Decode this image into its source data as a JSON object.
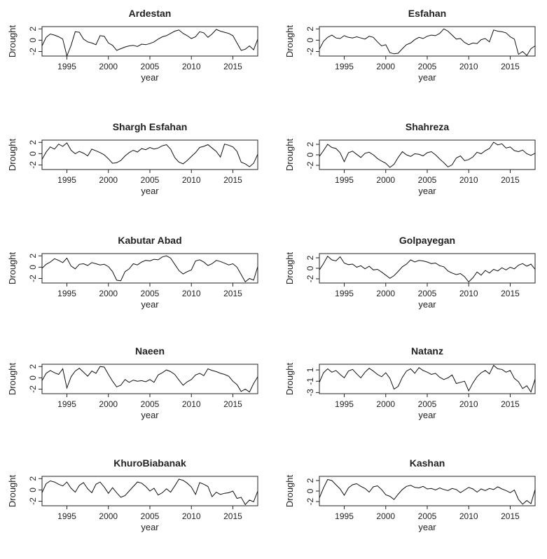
{
  "chart_data": [
    {
      "type": "line",
      "title": "Ardestan",
      "xlabel": "year",
      "ylabel": "Drought",
      "xlim": [
        1992,
        2018
      ],
      "ylim": [
        -2.8,
        2.4
      ],
      "xticks": [
        1995,
        2000,
        2005,
        2010,
        2015
      ],
      "yticks": [
        2,
        0,
        -2
      ],
      "x": [
        1992,
        1992.5,
        1993,
        1993.5,
        1994,
        1994.5,
        1995,
        1995.5,
        1996,
        1996.5,
        1997,
        1997.5,
        1998,
        1998.5,
        1999,
        1999.5,
        2000,
        2000.5,
        2001,
        2001.5,
        2002,
        2002.5,
        2003,
        2003.5,
        2004,
        2004.5,
        2005,
        2005.5,
        2006,
        2006.5,
        2007,
        2007.5,
        2008,
        2008.5,
        2009,
        2009.5,
        2010,
        2010.5,
        2011,
        2011.5,
        2012,
        2012.5,
        2013,
        2013.5,
        2014,
        2014.5,
        2015,
        2015.5,
        2016,
        2016.5,
        2017,
        2017.5,
        2018
      ],
      "y": [
        -1,
        0.5,
        1.1,
        0.9,
        0.6,
        0.2,
        -2.8,
        -0.9,
        1.5,
        1.4,
        0.2,
        -0.3,
        -0.5,
        -0.8,
        0.8,
        0.7,
        -0.5,
        -0.9,
        -1.8,
        -1.5,
        -1.2,
        -1.0,
        -0.9,
        -1.1,
        -0.7,
        -0.8,
        -0.6,
        -0.3,
        0.2,
        0.6,
        0.8,
        1.2,
        1.6,
        1.8,
        1.2,
        0.8,
        0.3,
        0.6,
        1.5,
        1.3,
        0.5,
        1.1,
        1.9,
        1.6,
        1.4,
        1.2,
        0.8,
        -0.5,
        -1.8,
        -1.6,
        -1.0,
        -1.7,
        0.2
      ]
    },
    {
      "type": "line",
      "title": "Esfahan",
      "xlabel": "year",
      "ylabel": "Drought",
      "xlim": [
        1992,
        2018
      ],
      "ylim": [
        -2.8,
        2.4
      ],
      "xticks": [
        1995,
        2000,
        2005,
        2010,
        2015
      ],
      "yticks": [
        2,
        0,
        -2
      ],
      "x": [
        1992,
        1992.5,
        1993,
        1993.5,
        1994,
        1994.5,
        1995,
        1995.5,
        1996,
        1996.5,
        1997,
        1997.5,
        1998,
        1998.5,
        1999,
        1999.5,
        2000,
        2000.5,
        2001,
        2001.5,
        2002,
        2002.5,
        2003,
        2003.5,
        2004,
        2004.5,
        2005,
        2005.5,
        2006,
        2006.5,
        2007,
        2007.5,
        2008,
        2008.5,
        2009,
        2009.5,
        2010,
        2010.5,
        2011,
        2011.5,
        2012,
        2012.5,
        2013,
        2013.5,
        2014,
        2014.5,
        2015,
        2015.5,
        2016,
        2016.5,
        2017,
        2017.5,
        2018
      ],
      "y": [
        -1.6,
        -0.2,
        0.5,
        0.9,
        0.4,
        0.3,
        0.8,
        0.5,
        0.4,
        0.6,
        0.4,
        0.2,
        0.7,
        0.5,
        -0.3,
        -1.0,
        -0.8,
        -2.2,
        -2.4,
        -2.3,
        -1.5,
        -0.8,
        -0.5,
        0.1,
        0.5,
        0.3,
        0.7,
        0.9,
        0.8,
        1.2,
        2.0,
        1.6,
        0.9,
        0.2,
        0.3,
        -0.4,
        -0.8,
        -0.5,
        -0.6,
        0.1,
        0.3,
        -0.3,
        1.8,
        1.6,
        1.5,
        1.3,
        0.6,
        0.2,
        -2.5,
        -2.0,
        -2.7,
        -1.5,
        -1.0
      ]
    },
    {
      "type": "line",
      "title": "Shargh Esfahan",
      "xlabel": "year",
      "ylabel": "Drought",
      "xlim": [
        1992,
        2018
      ],
      "ylim": [
        -2.8,
        2.4
      ],
      "xticks": [
        1995,
        2000,
        2005,
        2010,
        2015
      ],
      "yticks": [
        2,
        0,
        -2
      ],
      "x": [
        1992,
        1992.5,
        1993,
        1993.5,
        1994,
        1994.5,
        1995,
        1995.5,
        1996,
        1996.5,
        1997,
        1997.5,
        1998,
        1998.5,
        1999,
        1999.5,
        2000,
        2000.5,
        2001,
        2001.5,
        2002,
        2002.5,
        2003,
        2003.5,
        2004,
        2004.5,
        2005,
        2005.5,
        2006,
        2006.5,
        2007,
        2007.5,
        2008,
        2008.5,
        2009,
        2009.5,
        2010,
        2010.5,
        2011,
        2011.5,
        2012,
        2012.5,
        2013,
        2013.5,
        2014,
        2014.5,
        2015,
        2015.5,
        2016,
        2016.5,
        2017,
        2017.5,
        2018
      ],
      "y": [
        -1.0,
        0.3,
        1.2,
        0.8,
        1.7,
        1.3,
        1.9,
        0.6,
        0.0,
        0.4,
        0.1,
        -0.4,
        0.8,
        0.5,
        0.2,
        -0.2,
        -0.9,
        -1.7,
        -1.6,
        -1.2,
        -0.4,
        0.2,
        0.6,
        0.3,
        0.9,
        0.7,
        1.1,
        0.8,
        1.0,
        1.4,
        1.6,
        0.8,
        -0.7,
        -1.5,
        -1.8,
        -1.2,
        -0.5,
        0.2,
        1.1,
        1.3,
        1.6,
        1.0,
        0.4,
        -0.6,
        1.7,
        1.5,
        1.2,
        0.4,
        -1.5,
        -1.8,
        -2.3,
        -1.7,
        -0.1
      ]
    },
    {
      "type": "line",
      "title": "Shahreza",
      "xlabel": "year",
      "ylabel": "Drought",
      "xlim": [
        1992,
        2018
      ],
      "ylim": [
        -2.8,
        2.8
      ],
      "xticks": [
        1995,
        2000,
        2005,
        2010,
        2015
      ],
      "yticks": [
        2,
        0,
        -2
      ],
      "x": [
        1992,
        1992.5,
        1993,
        1993.5,
        1994,
        1994.5,
        1995,
        1995.5,
        1996,
        1996.5,
        1997,
        1997.5,
        1998,
        1998.5,
        1999,
        1999.5,
        2000,
        2000.5,
        2001,
        2001.5,
        2002,
        2002.5,
        2003,
        2003.5,
        2004,
        2004.5,
        2005,
        2005.5,
        2006,
        2006.5,
        2007,
        2007.5,
        2008,
        2008.5,
        2009,
        2009.5,
        2010,
        2010.5,
        2011,
        2011.5,
        2012,
        2012.5,
        2013,
        2013.5,
        2014,
        2014.5,
        2015,
        2015.5,
        2016,
        2016.5,
        2017,
        2017.5,
        2018
      ],
      "y": [
        -0.3,
        0.8,
        2.0,
        1.4,
        1.2,
        0.4,
        -1.3,
        0.4,
        0.7,
        0.1,
        -0.5,
        0.3,
        0.5,
        0.0,
        -0.7,
        -1.2,
        -1.6,
        -2.4,
        -1.8,
        -0.5,
        0.6,
        0.0,
        -0.3,
        0.2,
        0.1,
        -0.2,
        0.4,
        0.6,
        0.0,
        -0.8,
        -1.5,
        -2.3,
        -1.9,
        -0.6,
        -0.2,
        -1.1,
        -0.9,
        -0.4,
        0.5,
        0.2,
        0.8,
        1.2,
        2.4,
        1.9,
        2.1,
        1.3,
        1.5,
        0.8,
        0.6,
        0.9,
        0.2,
        -0.1,
        0.3
      ]
    },
    {
      "type": "line",
      "title": "Kabutar Abad",
      "xlabel": "year",
      "ylabel": "Drought",
      "xlim": [
        1992,
        2018
      ],
      "ylim": [
        -2.8,
        2.4
      ],
      "xticks": [
        1995,
        2000,
        2005,
        2010,
        2015
      ],
      "yticks": [
        2,
        0,
        -2
      ],
      "x": [
        1992,
        1992.5,
        1993,
        1993.5,
        1994,
        1994.5,
        1995,
        1995.5,
        1996,
        1996.5,
        1997,
        1997.5,
        1998,
        1998.5,
        1999,
        1999.5,
        2000,
        2000.5,
        2001,
        2001.5,
        2002,
        2002.5,
        2003,
        2003.5,
        2004,
        2004.5,
        2005,
        2005.5,
        2006,
        2006.5,
        2007,
        2007.5,
        2008,
        2008.5,
        2009,
        2009.5,
        2010,
        2010.5,
        2011,
        2011.5,
        2012,
        2012.5,
        2013,
        2013.5,
        2014,
        2014.5,
        2015,
        2015.5,
        2016,
        2016.5,
        2017,
        2017.5,
        2018
      ],
      "y": [
        -0.2,
        0.5,
        0.9,
        1.5,
        1.2,
        0.8,
        1.6,
        0.2,
        -0.3,
        0.5,
        0.6,
        0.3,
        0.8,
        0.6,
        0.4,
        0.5,
        0.1,
        -0.8,
        -2.3,
        -2.4,
        -0.8,
        -0.3,
        0.6,
        0.4,
        0.9,
        1.2,
        1.1,
        1.4,
        1.3,
        1.8,
        2.0,
        1.6,
        0.5,
        -0.6,
        -1.2,
        -0.8,
        -0.5,
        1.1,
        1.3,
        0.9,
        0.3,
        0.6,
        1.2,
        1.0,
        0.7,
        0.4,
        0.6,
        0.0,
        -1.3,
        -2.6,
        -2.0,
        -2.3,
        0.1
      ]
    },
    {
      "type": "line",
      "title": "Golpayegan",
      "xlabel": "year",
      "ylabel": "Drought",
      "xlim": [
        1992,
        2018
      ],
      "ylim": [
        -2.8,
        2.8
      ],
      "xticks": [
        1995,
        2000,
        2005,
        2010,
        2015
      ],
      "yticks": [
        2,
        0,
        -2
      ],
      "x": [
        1992,
        1992.5,
        1993,
        1993.5,
        1994,
        1994.5,
        1995,
        1995.5,
        1996,
        1996.5,
        1997,
        1997.5,
        1998,
        1998.5,
        1999,
        1999.5,
        2000,
        2000.5,
        2001,
        2001.5,
        2002,
        2002.5,
        2003,
        2003.5,
        2004,
        2004.5,
        2005,
        2005.5,
        2006,
        2006.5,
        2007,
        2007.5,
        2008,
        2008.5,
        2009,
        2009.5,
        2010,
        2010.5,
        2011,
        2011.5,
        2012,
        2012.5,
        2013,
        2013.5,
        2014,
        2014.5,
        2015,
        2015.5,
        2016,
        2016.5,
        2017,
        2017.5,
        2018
      ],
      "y": [
        -0.3,
        0.9,
        2.3,
        1.6,
        1.4,
        2.2,
        1.0,
        0.7,
        0.8,
        0.2,
        0.5,
        -0.1,
        0.4,
        -0.3,
        -0.2,
        -0.7,
        -1.3,
        -1.9,
        -1.4,
        -0.6,
        0.3,
        0.8,
        1.6,
        1.2,
        1.5,
        1.4,
        1.2,
        0.9,
        1.0,
        0.5,
        0.3,
        -0.5,
        -0.9,
        -1.2,
        -1.0,
        -1.6,
        -2.6,
        -1.8,
        -0.7,
        -1.3,
        -0.4,
        -0.9,
        -0.2,
        -0.5,
        0.1,
        -0.3,
        0.2,
        -0.1,
        0.6,
        0.9,
        0.4,
        0.8,
        -0.2
      ]
    },
    {
      "type": "line",
      "title": "Naeen",
      "xlabel": "year",
      "ylabel": "Drought",
      "xlim": [
        1992,
        2018
      ],
      "ylim": [
        -2.8,
        2.4
      ],
      "xticks": [
        1995,
        2000,
        2005,
        2010,
        2015
      ],
      "yticks": [
        2,
        0,
        -2
      ],
      "x": [
        1992,
        1992.5,
        1993,
        1993.5,
        1994,
        1994.5,
        1995,
        1995.5,
        1996,
        1996.5,
        1997,
        1997.5,
        1998,
        1998.5,
        1999,
        1999.5,
        2000,
        2000.5,
        2001,
        2001.5,
        2002,
        2002.5,
        2003,
        2003.5,
        2004,
        2004.5,
        2005,
        2005.5,
        2006,
        2006.5,
        2007,
        2007.5,
        2008,
        2008.5,
        2009,
        2009.5,
        2010,
        2010.5,
        2011,
        2011.5,
        2012,
        2012.5,
        2013,
        2013.5,
        2014,
        2014.5,
        2015,
        2015.5,
        2016,
        2016.5,
        2017,
        2017.5,
        2018
      ],
      "y": [
        -0.5,
        0.8,
        1.3,
        0.9,
        0.6,
        1.6,
        -1.8,
        0.2,
        1.2,
        1.7,
        1.0,
        0.3,
        1.2,
        0.8,
        2.0,
        1.9,
        0.6,
        -0.6,
        -1.6,
        -1.3,
        -0.3,
        -0.8,
        -0.4,
        -0.6,
        -0.5,
        -0.7,
        -0.3,
        -0.8,
        0.5,
        0.9,
        1.4,
        1.1,
        0.6,
        -0.4,
        -1.3,
        -0.7,
        -0.3,
        0.5,
        0.8,
        0.4,
        1.6,
        1.3,
        1.1,
        0.8,
        0.6,
        0.3,
        -0.6,
        -1.2,
        -2.4,
        -2.0,
        -2.5,
        -1.0,
        0.2
      ]
    },
    {
      "type": "line",
      "title": "Natanz",
      "xlabel": "year",
      "ylabel": "Drought",
      "xlim": [
        1992,
        2018
      ],
      "ylim": [
        -3.2,
        2.0
      ],
      "xticks": [
        1995,
        2000,
        2005,
        2010,
        2015
      ],
      "yticks": [
        1,
        -1,
        -3
      ],
      "x": [
        1992,
        1992.5,
        1993,
        1993.5,
        1994,
        1994.5,
        1995,
        1995.5,
        1996,
        1996.5,
        1997,
        1997.5,
        1998,
        1998.5,
        1999,
        1999.5,
        2000,
        2000.5,
        2001,
        2001.5,
        2002,
        2002.5,
        2003,
        2003.5,
        2004,
        2004.5,
        2005,
        2005.5,
        2006,
        2006.5,
        2007,
        2007.5,
        2008,
        2008.5,
        2009,
        2009.5,
        2010,
        2010.5,
        2011,
        2011.5,
        2012,
        2012.5,
        2013,
        2013.5,
        2014,
        2014.5,
        2015,
        2015.5,
        2016,
        2016.5,
        2017,
        2017.5,
        2018
      ],
      "y": [
        -1.2,
        0.5,
        1.2,
        0.6,
        0.9,
        0.2,
        -0.4,
        0.8,
        1.1,
        0.3,
        -0.4,
        0.6,
        1.3,
        0.8,
        0.2,
        -0.2,
        0.5,
        -0.5,
        -2.4,
        -1.9,
        -0.3,
        0.8,
        1.2,
        0.4,
        1.4,
        0.9,
        0.6,
        0.2,
        0.4,
        -0.3,
        -0.7,
        -0.4,
        0.1,
        -1.4,
        -1.2,
        -1.0,
        -2.7,
        -1.3,
        -0.2,
        0.5,
        0.9,
        0.3,
        1.8,
        1.2,
        1.1,
        0.6,
        0.9,
        -0.5,
        -1.1,
        -2.3,
        -1.8,
        -2.9,
        -0.6
      ]
    },
    {
      "type": "line",
      "title": "KhuroBiabanak",
      "xlabel": "year",
      "ylabel": "Drought",
      "xlim": [
        1992,
        2018
      ],
      "ylim": [
        -2.8,
        2.4
      ],
      "xticks": [
        1995,
        2000,
        2005,
        2010,
        2015
      ],
      "yticks": [
        2,
        0,
        -2
      ],
      "x": [
        1992,
        1992.5,
        1993,
        1993.5,
        1994,
        1994.5,
        1995,
        1995.5,
        1996,
        1996.5,
        1997,
        1997.5,
        1998,
        1998.5,
        1999,
        1999.5,
        2000,
        2000.5,
        2001,
        2001.5,
        2002,
        2002.5,
        2003,
        2003.5,
        2004,
        2004.5,
        2005,
        2005.5,
        2006,
        2006.5,
        2007,
        2007.5,
        2008,
        2008.5,
        2009,
        2009.5,
        2010,
        2010.5,
        2011,
        2011.5,
        2012,
        2012.5,
        2013,
        2013.5,
        2014,
        2014.5,
        2015,
        2015.5,
        2016,
        2016.5,
        2017,
        2017.5,
        2018
      ],
      "y": [
        -0.5,
        1.1,
        1.6,
        1.4,
        1.0,
        0.7,
        1.4,
        0.3,
        -0.4,
        0.8,
        1.3,
        0.2,
        -0.5,
        1.0,
        1.4,
        0.5,
        -0.6,
        0.4,
        -0.5,
        -1.3,
        -1.0,
        -0.2,
        0.6,
        1.4,
        1.2,
        0.6,
        -0.2,
        0.3,
        -0.9,
        -0.5,
        0.2,
        -0.4,
        0.7,
        1.9,
        1.7,
        1.2,
        0.5,
        -0.8,
        1.3,
        1.0,
        0.6,
        -1.2,
        -0.4,
        -0.8,
        -0.6,
        -0.5,
        -0.2,
        -1.5,
        -1.3,
        -2.6,
        -1.8,
        -2.1,
        -0.2
      ]
    },
    {
      "type": "line",
      "title": "Kashan",
      "xlabel": "year",
      "ylabel": "Drought",
      "xlim": [
        1992,
        2018
      ],
      "ylim": [
        -2.8,
        2.8
      ],
      "xticks": [
        1995,
        2000,
        2005,
        2010,
        2015
      ],
      "yticks": [
        2,
        0,
        -2
      ],
      "x": [
        1992,
        1992.5,
        1993,
        1993.5,
        1994,
        1994.5,
        1995,
        1995.5,
        1996,
        1996.5,
        1997,
        1997.5,
        1998,
        1998.5,
        1999,
        1999.5,
        2000,
        2000.5,
        2001,
        2001.5,
        2002,
        2002.5,
        2003,
        2003.5,
        2004,
        2004.5,
        2005,
        2005.5,
        2006,
        2006.5,
        2007,
        2007.5,
        2008,
        2008.5,
        2009,
        2009.5,
        2010,
        2010.5,
        2011,
        2011.5,
        2012,
        2012.5,
        2013,
        2013.5,
        2014,
        2014.5,
        2015,
        2015.5,
        2016,
        2016.5,
        2017,
        2017.5,
        2018
      ],
      "y": [
        -1.3,
        0.6,
        2.2,
        2.0,
        1.2,
        0.4,
        -0.8,
        0.6,
        1.2,
        1.4,
        0.9,
        0.5,
        -0.2,
        0.8,
        1.0,
        0.3,
        -0.7,
        -1.0,
        -1.6,
        -0.6,
        0.3,
        0.9,
        1.1,
        0.7,
        0.6,
        0.9,
        0.4,
        0.5,
        0.2,
        0.6,
        0.3,
        0.1,
        0.5,
        0.3,
        -0.3,
        0.2,
        0.7,
        0.4,
        -0.2,
        0.4,
        0.1,
        0.5,
        0.3,
        0.8,
        0.4,
        0.1,
        -0.3,
        0.2,
        -1.6,
        -2.5,
        -1.8,
        -2.4,
        0.3
      ]
    }
  ]
}
